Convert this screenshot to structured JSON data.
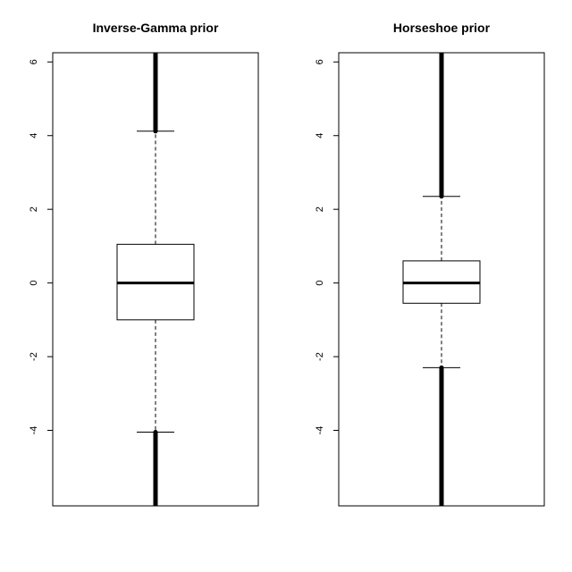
{
  "chart_data": [
    {
      "type": "box",
      "title": "Inverse-Gamma prior",
      "xlabel": "",
      "ylabel": "",
      "ylim": [
        -6.05,
        6.25
      ],
      "yticks": [
        -4,
        -2,
        0,
        2,
        4,
        6
      ],
      "ytick_labels": [
        "-4",
        "-2",
        "0",
        "2",
        "4",
        "6"
      ],
      "grid": false,
      "box": {
        "median": 0.0,
        "q1": -1.0,
        "q3": 1.05,
        "whisker_low": -4.05,
        "whisker_high": 4.12
      },
      "outliers": {
        "low_from": -6.05,
        "low_to": -4.05,
        "high_from": 4.12,
        "high_to": 6.25
      }
    },
    {
      "type": "box",
      "title": "Horseshoe prior",
      "xlabel": "",
      "ylabel": "",
      "ylim": [
        -6.05,
        6.25
      ],
      "yticks": [
        -4,
        -2,
        0,
        2,
        4,
        6
      ],
      "ytick_labels": [
        "-4",
        "-2",
        "0",
        "2",
        "4",
        "6"
      ],
      "grid": false,
      "box": {
        "median": 0.0,
        "q1": -0.55,
        "q3": 0.6,
        "whisker_low": -2.3,
        "whisker_high": 2.35
      },
      "outliers": {
        "low_from": -6.05,
        "low_to": -2.3,
        "high_from": 2.35,
        "high_to": 6.25
      }
    }
  ]
}
